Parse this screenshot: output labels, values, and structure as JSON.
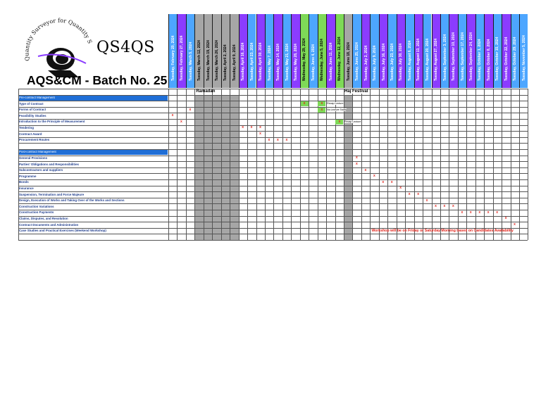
{
  "brand": "QS4QS",
  "logo_ring_text": "Quantity Surveyor for Quantity Surveyors",
  "batch_title": "AQS&CM - Batch No. 25",
  "dates": [
    {
      "label": "Tuesday, February 20, 2024",
      "color": "#4da6ff"
    },
    {
      "label": "Tuesday, February 27, 2024",
      "color": "#8b3cff"
    },
    {
      "label": "Tuesday, March 5, 2024",
      "color": "#4da6ff"
    },
    {
      "label": "Tuesday, March 12, 2024",
      "color": "#a6a6a6"
    },
    {
      "label": "Tuesday, March 19, 2024",
      "color": "#a6a6a6"
    },
    {
      "label": "Tuesday, March 26, 2024",
      "color": "#a6a6a6"
    },
    {
      "label": "Tuesday, April 2, 2024",
      "color": "#a6a6a6"
    },
    {
      "label": "Tuesday, April 9, 2024",
      "color": "#a6a6a6"
    },
    {
      "label": "Tuesday, April 16, 2024",
      "color": "#8b3cff"
    },
    {
      "label": "Tuesday, April 23, 2024",
      "color": "#4da6ff"
    },
    {
      "label": "Tuesday, April 30, 2024",
      "color": "#8b3cff"
    },
    {
      "label": "Tuesday, May 7, 2024",
      "color": "#4da6ff"
    },
    {
      "label": "Tuesday, May 14, 2024",
      "color": "#8b3cff"
    },
    {
      "label": "Tuesday, May 21, 2024",
      "color": "#4da6ff"
    },
    {
      "label": "Tuesday, May 28, 2024",
      "color": "#8b3cff"
    },
    {
      "label": "Wednesday, May 29, 2024",
      "color": "#7ed957"
    },
    {
      "label": "Tuesday, June 4, 2024",
      "color": "#4da6ff"
    },
    {
      "label": "Wednesday, June 5, 2024",
      "color": "#7ed957"
    },
    {
      "label": "Tuesday, June 11, 2024",
      "color": "#8b3cff"
    },
    {
      "label": "Wednesday, June 12, 2024",
      "color": "#7ed957"
    },
    {
      "label": "Tuesday, June 18, 2024",
      "color": "#a6a6a6"
    },
    {
      "label": "Tuesday, June 25, 2024",
      "color": "#4da6ff"
    },
    {
      "label": "Tuesday, July 2, 2024",
      "color": "#8b3cff"
    },
    {
      "label": "Tuesday, July 9, 2024",
      "color": "#4da6ff"
    },
    {
      "label": "Tuesday, July 16, 2024",
      "color": "#8b3cff"
    },
    {
      "label": "Tuesday, July 23, 2024",
      "color": "#4da6ff"
    },
    {
      "label": "Tuesday, July 30, 2024",
      "color": "#8b3cff"
    },
    {
      "label": "Tuesday, August 6, 2024",
      "color": "#4da6ff"
    },
    {
      "label": "Tuesday, August 13, 2024",
      "color": "#8b3cff"
    },
    {
      "label": "Tuesday, August 20, 2024",
      "color": "#4da6ff"
    },
    {
      "label": "Tuesday, August 27, 2024",
      "color": "#8b3cff"
    },
    {
      "label": "Tuesday, September 3, 2024",
      "color": "#4da6ff"
    },
    {
      "label": "Tuesday, September 10, 2024",
      "color": "#8b3cff"
    },
    {
      "label": "Tuesday, September 17, 2024",
      "color": "#4da6ff"
    },
    {
      "label": "Tuesday, September 24, 2024",
      "color": "#8b3cff"
    },
    {
      "label": "Tuesday, October 1, 2024",
      "color": "#4da6ff"
    },
    {
      "label": "Tuesday, October 8, 2024",
      "color": "#8b3cff"
    },
    {
      "label": "Tuesday, October 15, 2024",
      "color": "#4da6ff"
    },
    {
      "label": "Tuesday, October 22, 2024",
      "color": "#8b3cff"
    },
    {
      "label": "Tuesday, October 29, 2024",
      "color": "#4da6ff"
    },
    {
      "label": "Tuesday, November 5, 2024",
      "color": "#4da6ff"
    }
  ],
  "banners": {
    "ramadan": "Ramadan",
    "haj": "Haj Festival"
  },
  "rows": [
    {
      "label": "",
      "kind": "blank"
    },
    {
      "label": "Pre-contract Management",
      "kind": "header"
    },
    {
      "label": "Type of Contract",
      "kind": "item"
    },
    {
      "label": "Forms of Contract",
      "kind": "item"
    },
    {
      "label": "Feasibility Studies",
      "kind": "item"
    },
    {
      "label": "Introduction to the Principle of Measurement",
      "kind": "item"
    },
    {
      "label": "Tendering",
      "kind": "item"
    },
    {
      "label": "Contract Award",
      "kind": "item"
    },
    {
      "label": "Procurement Routes",
      "kind": "item"
    },
    {
      "label": "",
      "kind": "blank"
    },
    {
      "label": "Post-contract Management",
      "kind": "header"
    },
    {
      "label": "General Provisions",
      "kind": "item"
    },
    {
      "label": "Parties' Obligations and Responsibilities",
      "kind": "item"
    },
    {
      "label": "Subcontractors and suppliers",
      "kind": "item"
    },
    {
      "label": "Programme",
      "kind": "item"
    },
    {
      "label": "Bonds",
      "kind": "item"
    },
    {
      "label": "Insurance",
      "kind": "item"
    },
    {
      "label": "Suspension, Termination and Force Majeure",
      "kind": "item"
    },
    {
      "label": "Design, Execution of Works and Taking Over of the Works and Sections",
      "kind": "item"
    },
    {
      "label": "Construction Variations",
      "kind": "item"
    },
    {
      "label": "Construction Payments",
      "kind": "item"
    },
    {
      "label": "Claims, Disputes, and Resolution",
      "kind": "item"
    },
    {
      "label": "Contract Documents and Administration",
      "kind": "item"
    },
    {
      "label": "Case Studies and Practical Exercises (Weekend Workshop)",
      "kind": "item"
    },
    {
      "label": "",
      "kind": "blank"
    }
  ],
  "marks": [
    {
      "row": 3,
      "col": 2
    },
    {
      "row": 4,
      "col": 0
    },
    {
      "row": 5,
      "col": 1
    },
    {
      "row": 6,
      "col": 8
    },
    {
      "row": 6,
      "col": 9
    },
    {
      "row": 6,
      "col": 10
    },
    {
      "row": 7,
      "col": 10
    },
    {
      "row": 8,
      "col": 11
    },
    {
      "row": 8,
      "col": 12
    },
    {
      "row": 8,
      "col": 13
    },
    {
      "row": 11,
      "col": 21
    },
    {
      "row": 12,
      "col": 21
    },
    {
      "row": 13,
      "col": 22
    },
    {
      "row": 14,
      "col": 23
    },
    {
      "row": 15,
      "col": 24
    },
    {
      "row": 15,
      "col": 25
    },
    {
      "row": 16,
      "col": 26
    },
    {
      "row": 17,
      "col": 27
    },
    {
      "row": 17,
      "col": 28
    },
    {
      "row": 18,
      "col": 29
    },
    {
      "row": 19,
      "col": 30
    },
    {
      "row": 19,
      "col": 31
    },
    {
      "row": 19,
      "col": 32
    },
    {
      "row": 20,
      "col": 33
    },
    {
      "row": 20,
      "col": 34
    },
    {
      "row": 20,
      "col": 35
    },
    {
      "row": 20,
      "col": 36
    },
    {
      "row": 20,
      "col": 37
    },
    {
      "row": 21,
      "col": 38
    },
    {
      "row": 22,
      "col": 39
    }
  ],
  "green_marks": [
    {
      "row": 2,
      "col": 15,
      "mark": "x"
    },
    {
      "row": 2,
      "col": 17,
      "mark": "x"
    },
    {
      "row": 3,
      "col": 17,
      "mark": "x"
    },
    {
      "row": 5,
      "col": 19,
      "mark": "x"
    }
  ],
  "notes": [
    {
      "row": 2,
      "col": 18,
      "text": "Recap Lecture"
    },
    {
      "row": 3,
      "col": 18,
      "text": "No Lecture Today"
    },
    {
      "row": 5,
      "col": 20,
      "text": "Recap Lecture"
    }
  ],
  "footer_note": "Workshop will be on Friday or Saturday Morning based on Candidates Availability",
  "colors": {
    "purple": "#8b3cff",
    "blue": "#4da6ff",
    "green": "#7ed957",
    "grey": "#a6a6a6",
    "mark": "#e0241b",
    "label": "#1f3d8c",
    "header": "#1f6ed6"
  }
}
